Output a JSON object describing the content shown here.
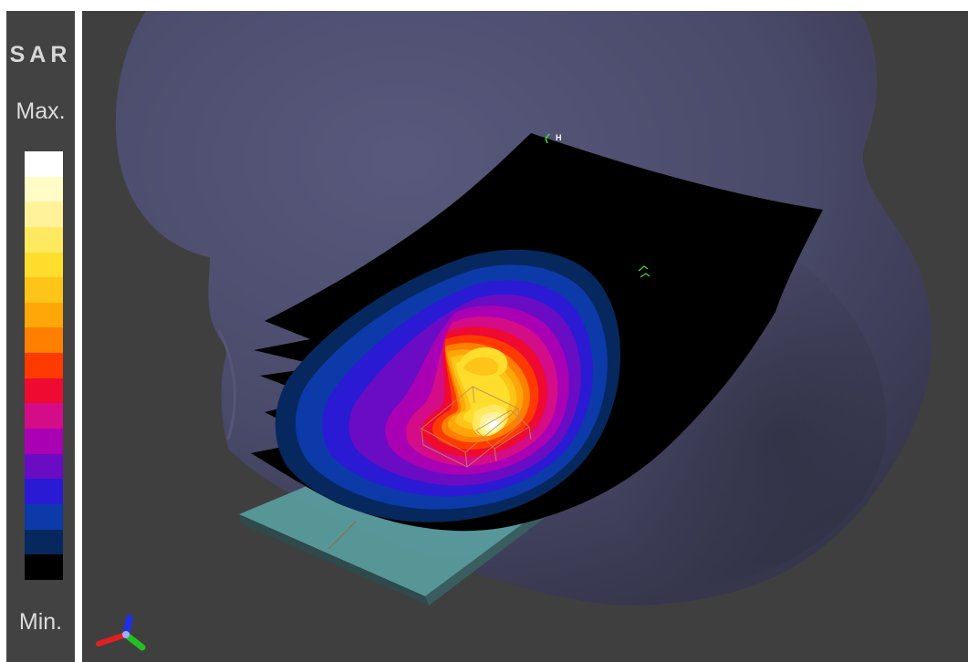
{
  "legend": {
    "title": "SAR",
    "max_label": "Max.",
    "min_label": "Min.",
    "colors": [
      "#ffffff",
      "#fffcc8",
      "#fff29a",
      "#ffe960",
      "#ffdd2c",
      "#ffc418",
      "#ffa608",
      "#ff7f00",
      "#ff3a00",
      "#ee0a30",
      "#d40c88",
      "#aa00b4",
      "#6a0cc4",
      "#2a1ad4",
      "#0c3aa8",
      "#06285e",
      "#000000"
    ]
  },
  "viewport": {
    "background": "#3f3f3f",
    "head_color": "#4b4b6e",
    "device_color": "#5aa0a0",
    "marker_label": "H",
    "axes": [
      {
        "name": "x",
        "color": "#e02020"
      },
      {
        "name": "y",
        "color": "#20c020"
      },
      {
        "name": "z",
        "color": "#2030e0"
      }
    ]
  }
}
